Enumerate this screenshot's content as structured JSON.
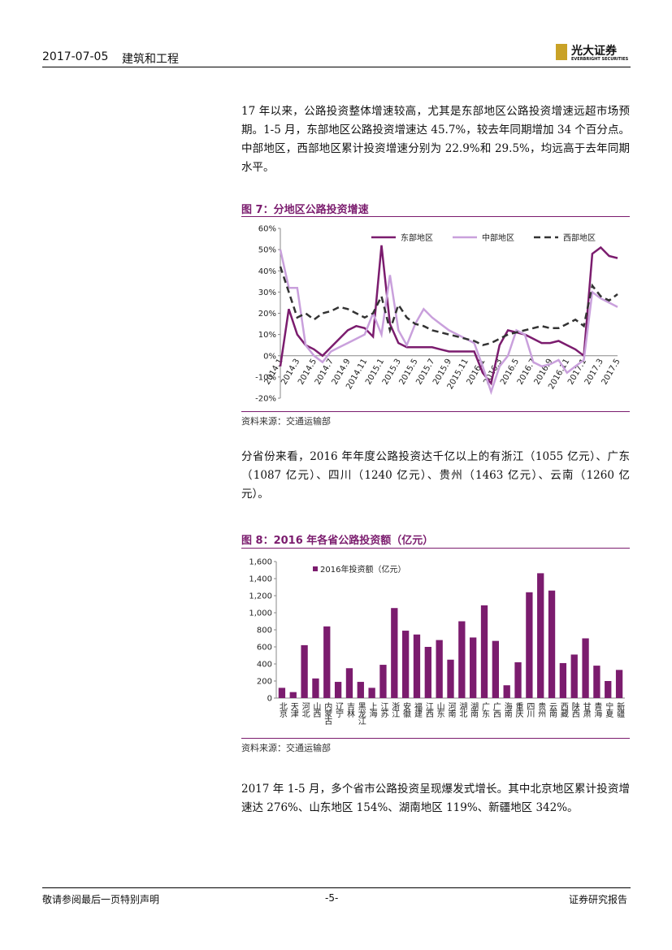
{
  "header": {
    "date": "2017-07-05",
    "sector": "建筑和工程",
    "logo": "光大证券",
    "logo_en": "EVERBRIGHT SECURITIES"
  },
  "paragraphs": [
    "17 年以来，公路投资整体增速较高，尤其是东部地区公路投资增速远超市场预期。1-5 月，东部地区公路投资增速达 45.7%，较去年同期增加 34 个百分点。中部地区，西部地区累计投资增速分别为 22.9%和 29.5%，均远高于去年同期水平。",
    "分省份来看，2016 年年度公路投资达千亿以上的有浙江（1055 亿元）、广东（1087 亿元）、四川（1240 亿元）、贵州（1463 亿元）、云南（1260 亿元）。",
    "2017 年 1-5 月，多个省市公路投资呈现爆发式增长。其中北京地区累计投资增速达 276%、山东地区 154%、湖南地区 119%、新疆地区 342%。"
  ],
  "chart_data": [
    {
      "type": "line",
      "title": "图 7：分地区公路投资增速",
      "source": "资料来源：交通运输部",
      "categories": [
        "2014.1",
        null,
        "2014.3",
        null,
        "2014.5",
        null,
        "2014.7",
        null,
        "2014.9",
        null,
        "2014.11",
        null,
        "2015.1",
        null,
        "2015.3",
        null,
        "2015.5",
        null,
        "2015.7",
        null,
        "2015.9",
        null,
        "2015.11",
        null,
        "2016.1",
        null,
        "2016.3",
        null,
        "2016.5",
        null,
        "2016.7",
        null,
        "2016.9",
        null,
        "2016.11",
        null,
        "2017.1",
        null,
        "2017.3",
        null,
        "2017.5"
      ],
      "series": [
        {
          "name": "东部地区",
          "color": "#7b1c6e",
          "style": "solid",
          "values": [
            -5,
            22,
            10,
            5,
            3,
            0,
            4,
            8,
            12,
            14,
            13,
            9,
            52,
            15,
            6,
            4,
            4,
            4,
            4,
            3,
            2,
            2,
            2,
            2,
            -8,
            -13,
            5,
            12,
            11,
            10,
            8,
            6,
            6,
            7,
            5,
            3,
            0,
            48,
            51,
            47,
            46
          ]
        },
        {
          "name": "中部地区",
          "color": "#c9a0dc",
          "style": "solid",
          "values": [
            50,
            32,
            32,
            5,
            0,
            -3,
            2,
            4,
            6,
            8,
            10,
            20,
            10,
            38,
            12,
            5,
            15,
            22,
            18,
            15,
            12,
            10,
            8,
            6,
            -5,
            -17,
            -5,
            0,
            12,
            10,
            -3,
            -5,
            -4,
            -2,
            -8,
            -5,
            -2,
            30,
            27,
            25,
            23
          ]
        },
        {
          "name": "西部地区",
          "color": "#333333",
          "style": "dashed",
          "values": [
            42,
            30,
            18,
            20,
            17,
            20,
            21,
            23,
            22,
            20,
            18,
            20,
            28,
            12,
            24,
            18,
            15,
            14,
            12,
            11,
            10,
            9,
            8,
            7,
            5,
            6,
            8,
            10,
            11,
            12,
            13,
            14,
            13,
            13,
            15,
            17,
            14,
            33,
            28,
            26,
            29
          ]
        }
      ],
      "ylim": [
        -20,
        60
      ],
      "yticks": [
        {
          "value": -20,
          "label": "-20%"
        },
        {
          "value": -10,
          "label": "-10%"
        },
        {
          "value": 0,
          "label": "0%"
        },
        {
          "value": 10,
          "label": "10%"
        },
        {
          "value": 20,
          "label": "20%"
        },
        {
          "value": 30,
          "label": "30%"
        },
        {
          "value": 40,
          "label": "40%"
        },
        {
          "value": 50,
          "label": "50%"
        },
        {
          "value": 60,
          "label": "60%"
        }
      ],
      "grid": false
    },
    {
      "type": "bar",
      "title": "图 8：2016 年各省公路投资额（亿元）",
      "source": "资料来源：交通运输部",
      "categories": [
        "北京",
        "天津",
        "河北",
        "山西",
        "内蒙古",
        "辽宁",
        "吉林",
        "黑龙江",
        "上海",
        "江苏",
        "浙江",
        "安徽",
        "福建",
        "江西",
        "山东",
        "河南",
        "湖北",
        "湖南",
        "广东",
        "广西",
        "海南",
        "重庆",
        "四川",
        "贵州",
        "云南",
        "西藏",
        "陕西",
        "甘肃",
        "青海",
        "宁夏",
        "新疆"
      ],
      "series": [
        {
          "name": "2016年投资额（亿元）",
          "color": "#7b1c6e",
          "values": [
            120,
            70,
            620,
            230,
            840,
            190,
            350,
            190,
            120,
            390,
            1055,
            790,
            745,
            600,
            680,
            450,
            900,
            710,
            1087,
            670,
            150,
            420,
            1240,
            1463,
            1260,
            410,
            510,
            700,
            380,
            200,
            330
          ]
        }
      ],
      "ylim": [
        0,
        1600
      ],
      "yticks": [
        0,
        200,
        400,
        600,
        800,
        {
          "value": 1000,
          "label": "1,000"
        },
        {
          "value": 1200,
          "label": "1,200"
        },
        {
          "value": 1400,
          "label": "1,400"
        },
        {
          "value": 1600,
          "label": "1,600"
        }
      ],
      "grid": false
    }
  ],
  "footer": {
    "left": "敬请参阅最后一页特别声明",
    "page": "-5-",
    "right": "证券研究报告"
  }
}
